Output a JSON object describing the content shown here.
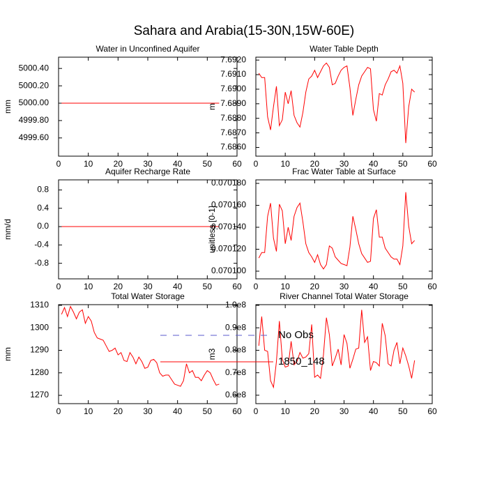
{
  "title": "Sahara and Arabia(15-30N,15W-60E)",
  "legend": [
    {
      "name": "No Obs",
      "color": "#5a5acd",
      "dashed": true
    },
    {
      "name": "1850_148",
      "color": "#ff0000",
      "dashed": false
    }
  ],
  "chart_data": [
    {
      "type": "line",
      "title": "Water in Unconfined Aquifer",
      "ylabel": "mm",
      "color": "#ff0000",
      "x": [
        1,
        2,
        3,
        4,
        5,
        6,
        7,
        8,
        9,
        10,
        11,
        12,
        13,
        14,
        15,
        16,
        17,
        18,
        19,
        20,
        21,
        22,
        23,
        24,
        25,
        26,
        27,
        28,
        29,
        30,
        31,
        32,
        33,
        34,
        35,
        36,
        37,
        38,
        39,
        40,
        41,
        42,
        43,
        44,
        45,
        46,
        47,
        48,
        49,
        50,
        51,
        52,
        53,
        54
      ],
      "values": [
        5000,
        5000,
        5000,
        5000,
        5000,
        5000,
        5000,
        5000,
        5000,
        5000,
        5000,
        5000,
        5000,
        5000,
        5000,
        5000,
        5000,
        5000,
        5000,
        5000,
        5000,
        5000,
        5000,
        5000,
        5000,
        5000,
        5000,
        5000,
        5000,
        5000,
        5000,
        5000,
        5000,
        5000,
        5000,
        5000,
        5000,
        5000,
        5000,
        5000,
        5000,
        5000,
        5000,
        5000,
        5000,
        5000,
        5000,
        5000,
        5000,
        5000,
        5000,
        5000,
        5000,
        5000
      ],
      "xlim": [
        0,
        60
      ],
      "xticks": [
        0,
        10,
        20,
        30,
        40,
        50,
        60
      ],
      "ylim": [
        4999.39,
        5000.53
      ],
      "yticks": [
        {
          "value": 4999.6,
          "label": "4999.60"
        },
        {
          "value": 4999.8,
          "label": "4999.80"
        },
        {
          "value": 5000,
          "label": "5000.00"
        },
        {
          "value": 5000.2,
          "label": "5000.20"
        },
        {
          "value": 5000.4,
          "label": "5000.40"
        }
      ]
    },
    {
      "type": "line",
      "title": "Water Table Depth",
      "ylabel": "m",
      "color": "#ff0000",
      "x": [
        1,
        2,
        3,
        4,
        5,
        6,
        7,
        8,
        9,
        10,
        11,
        12,
        13,
        14,
        15,
        16,
        17,
        18,
        19,
        20,
        21,
        22,
        23,
        24,
        25,
        26,
        27,
        28,
        29,
        30,
        31,
        32,
        33,
        34,
        35,
        36,
        37,
        38,
        39,
        40,
        41,
        42,
        43,
        44,
        45,
        46,
        47,
        48,
        49,
        50,
        51,
        52,
        53,
        54
      ],
      "values": [
        7.6911,
        7.6908,
        7.6908,
        7.6881,
        7.6872,
        7.6888,
        7.6902,
        7.6875,
        7.6879,
        7.6898,
        7.689,
        7.6899,
        7.6882,
        7.6877,
        7.6874,
        7.6884,
        7.6898,
        7.6907,
        7.6909,
        7.6913,
        7.6908,
        7.6912,
        7.6916,
        7.6918,
        7.6915,
        7.6903,
        7.6904,
        7.6909,
        7.6913,
        7.6915,
        7.6916,
        7.6901,
        7.6882,
        7.6893,
        7.6903,
        7.6909,
        7.6912,
        7.6915,
        7.6914,
        7.6886,
        7.6878,
        7.6897,
        7.6896,
        7.6903,
        7.6907,
        7.6912,
        7.6913,
        7.6911,
        7.6916,
        7.6904,
        7.6863,
        7.6888,
        7.69,
        7.6898
      ],
      "xlim": [
        0,
        60
      ],
      "xticks": [
        0,
        10,
        20,
        30,
        40,
        50,
        60
      ],
      "ylim": [
        7.6854,
        7.6922
      ],
      "yticks": [
        {
          "value": 7.686,
          "label": "7.6860"
        },
        {
          "value": 7.687,
          "label": "7.6870"
        },
        {
          "value": 7.688,
          "label": "7.6880"
        },
        {
          "value": 7.689,
          "label": "7.6890"
        },
        {
          "value": 7.69,
          "label": "7.6900"
        },
        {
          "value": 7.691,
          "label": "7.6910"
        },
        {
          "value": 7.692,
          "label": "7.6920"
        }
      ]
    },
    {
      "type": "line",
      "title": "Aquifer Recharge Rate",
      "ylabel": "mm/d",
      "color": "#ff0000",
      "x": [
        1,
        2,
        3,
        4,
        5,
        6,
        7,
        8,
        9,
        10,
        11,
        12,
        13,
        14,
        15,
        16,
        17,
        18,
        19,
        20,
        21,
        22,
        23,
        24,
        25,
        26,
        27,
        28,
        29,
        30,
        31,
        32,
        33,
        34,
        35,
        36,
        37,
        38,
        39,
        40,
        41,
        42,
        43,
        44,
        45,
        46,
        47,
        48,
        49,
        50,
        51,
        52,
        53,
        54
      ],
      "values": [
        0,
        0,
        0,
        0,
        0,
        0,
        0,
        0,
        0,
        0,
        0,
        0,
        0,
        0,
        0,
        0,
        0,
        0,
        0,
        0,
        0,
        0,
        0,
        0,
        0,
        0,
        0,
        0,
        0,
        0,
        0,
        0,
        0,
        0,
        0,
        0,
        0,
        0,
        0,
        0,
        0,
        0,
        0,
        0,
        0,
        0,
        0,
        0,
        0,
        0,
        0,
        0,
        0,
        0
      ],
      "xlim": [
        0,
        60
      ],
      "xticks": [
        0,
        10,
        20,
        30,
        40,
        50,
        60
      ],
      "ylim": [
        -1.14,
        1.02
      ],
      "yticks": [
        -0.8,
        -0.4,
        {
          "value": 0,
          "label": "0.0"
        },
        0.4,
        0.8
      ]
    },
    {
      "type": "line",
      "title": "Frac Water Table at Surface",
      "ylabel": "unitless [0-1]",
      "color": "#ff0000",
      "x": [
        1,
        2,
        3,
        4,
        5,
        6,
        7,
        8,
        9,
        10,
        11,
        12,
        13,
        14,
        15,
        16,
        17,
        18,
        19,
        20,
        21,
        22,
        23,
        24,
        25,
        26,
        27,
        28,
        29,
        30,
        31,
        32,
        33,
        34,
        35,
        36,
        37,
        38,
        39,
        40,
        41,
        42,
        43,
        44,
        45,
        46,
        47,
        48,
        49,
        50,
        51,
        52,
        53,
        54
      ],
      "values": [
        0.070112,
        0.070117,
        0.070117,
        0.07015,
        0.070162,
        0.07013,
        0.070118,
        0.070161,
        0.070155,
        0.070125,
        0.07014,
        0.070128,
        0.07015,
        0.070158,
        0.070162,
        0.070145,
        0.070125,
        0.070117,
        0.070113,
        0.070108,
        0.070115,
        0.070106,
        0.070102,
        0.070106,
        0.070123,
        0.070121,
        0.070113,
        0.07011,
        0.070107,
        0.070106,
        0.070105,
        0.070122,
        0.07015,
        0.070138,
        0.070125,
        0.070116,
        0.070112,
        0.070108,
        0.070109,
        0.070148,
        0.070156,
        0.070131,
        0.070131,
        0.070121,
        0.070117,
        0.070113,
        0.070111,
        0.070111,
        0.070106,
        0.070123,
        0.070172,
        0.070141,
        0.070125,
        0.070128
      ],
      "xlim": [
        0,
        60
      ],
      "xticks": [
        0,
        10,
        20,
        30,
        40,
        50,
        60
      ],
      "ylim": [
        0.070093,
        0.0701832
      ],
      "yticks": [
        {
          "value": 0.0701,
          "label": "0.070100"
        },
        {
          "value": 0.07012,
          "label": "0.070120"
        },
        {
          "value": 0.07014,
          "label": "0.070140"
        },
        {
          "value": 0.07016,
          "label": "0.070160"
        },
        {
          "value": 0.07018,
          "label": "0.070180"
        }
      ]
    },
    {
      "type": "line",
      "title": "Total Water Storage",
      "ylabel": "mm",
      "color": "#ff0000",
      "x": [
        1,
        2,
        3,
        4,
        5,
        6,
        7,
        8,
        9,
        10,
        11,
        12,
        13,
        14,
        15,
        16,
        17,
        18,
        19,
        20,
        21,
        22,
        23,
        24,
        25,
        26,
        27,
        28,
        29,
        30,
        31,
        32,
        33,
        34,
        35,
        36,
        37,
        38,
        39,
        40,
        41,
        42,
        43,
        44,
        45,
        46,
        47,
        48,
        49,
        50,
        51,
        52,
        53,
        54
      ],
      "values": [
        1306,
        1309,
        1305,
        1309.5,
        1307,
        1304,
        1307,
        1308,
        1302,
        1305,
        1303,
        1298,
        1295.5,
        1295,
        1294.5,
        1292,
        1289.5,
        1290,
        1291,
        1288,
        1289,
        1285.5,
        1285,
        1289,
        1287,
        1284,
        1287,
        1285,
        1282,
        1282.5,
        1285.5,
        1286,
        1284.5,
        1280,
        1278.5,
        1279,
        1279,
        1277,
        1275,
        1274.5,
        1274,
        1276.5,
        1284,
        1280,
        1281,
        1278,
        1278,
        1276.5,
        1279,
        1281,
        1280,
        1277,
        1274.5,
        1275
      ],
      "xlim": [
        0,
        60
      ],
      "xticks": [
        0,
        10,
        20,
        30,
        40,
        50,
        60
      ],
      "ylim": [
        1266.3,
        1310.3
      ],
      "yticks": [
        1270,
        1280,
        1290,
        1300,
        1310
      ]
    },
    {
      "type": "line",
      "title": "River Channel Total Water Storage",
      "ylabel": "m3",
      "color": "#ff0000",
      "x": [
        1,
        2,
        3,
        4,
        5,
        6,
        7,
        8,
        9,
        10,
        11,
        12,
        13,
        14,
        15,
        16,
        17,
        18,
        19,
        20,
        21,
        22,
        23,
        24,
        25,
        26,
        27,
        28,
        29,
        30,
        31,
        32,
        33,
        34,
        35,
        36,
        37,
        38,
        39,
        40,
        41,
        42,
        43,
        44,
        45,
        46,
        47,
        48,
        49,
        50,
        51,
        52,
        53,
        54
      ],
      "values": [
        82000000,
        95000000,
        80000000,
        79500000,
        66500000,
        63500000,
        75000000,
        93000000,
        76000000,
        72500000,
        73000000,
        84000000,
        73500000,
        75000000,
        79000000,
        76500000,
        77000000,
        78500000,
        91500000,
        68000000,
        69000000,
        67500000,
        78000000,
        94500000,
        87000000,
        73000000,
        76500000,
        80500000,
        73500000,
        87000000,
        83000000,
        72000000,
        76000000,
        80500000,
        81000000,
        98000000,
        83500000,
        86000000,
        71000000,
        75000000,
        74500000,
        73000000,
        92000000,
        86500000,
        74000000,
        73000000,
        80000000,
        83500000,
        74000000,
        81000000,
        77500000,
        73000000,
        67500000,
        75500000
      ],
      "xlim": [
        0,
        60
      ],
      "xticks": [
        0,
        10,
        20,
        30,
        40,
        50,
        60
      ],
      "ylim": [
        56250000,
        100300000
      ],
      "yticks": [
        {
          "value": 60000000,
          "label": "0.6e8"
        },
        {
          "value": 70000000,
          "label": "0.7e8"
        },
        {
          "value": 80000000,
          "label": "0.8e8"
        },
        {
          "value": 90000000,
          "label": "0.9e8"
        },
        {
          "value": 100000000,
          "label": "1.0e8"
        }
      ]
    }
  ]
}
